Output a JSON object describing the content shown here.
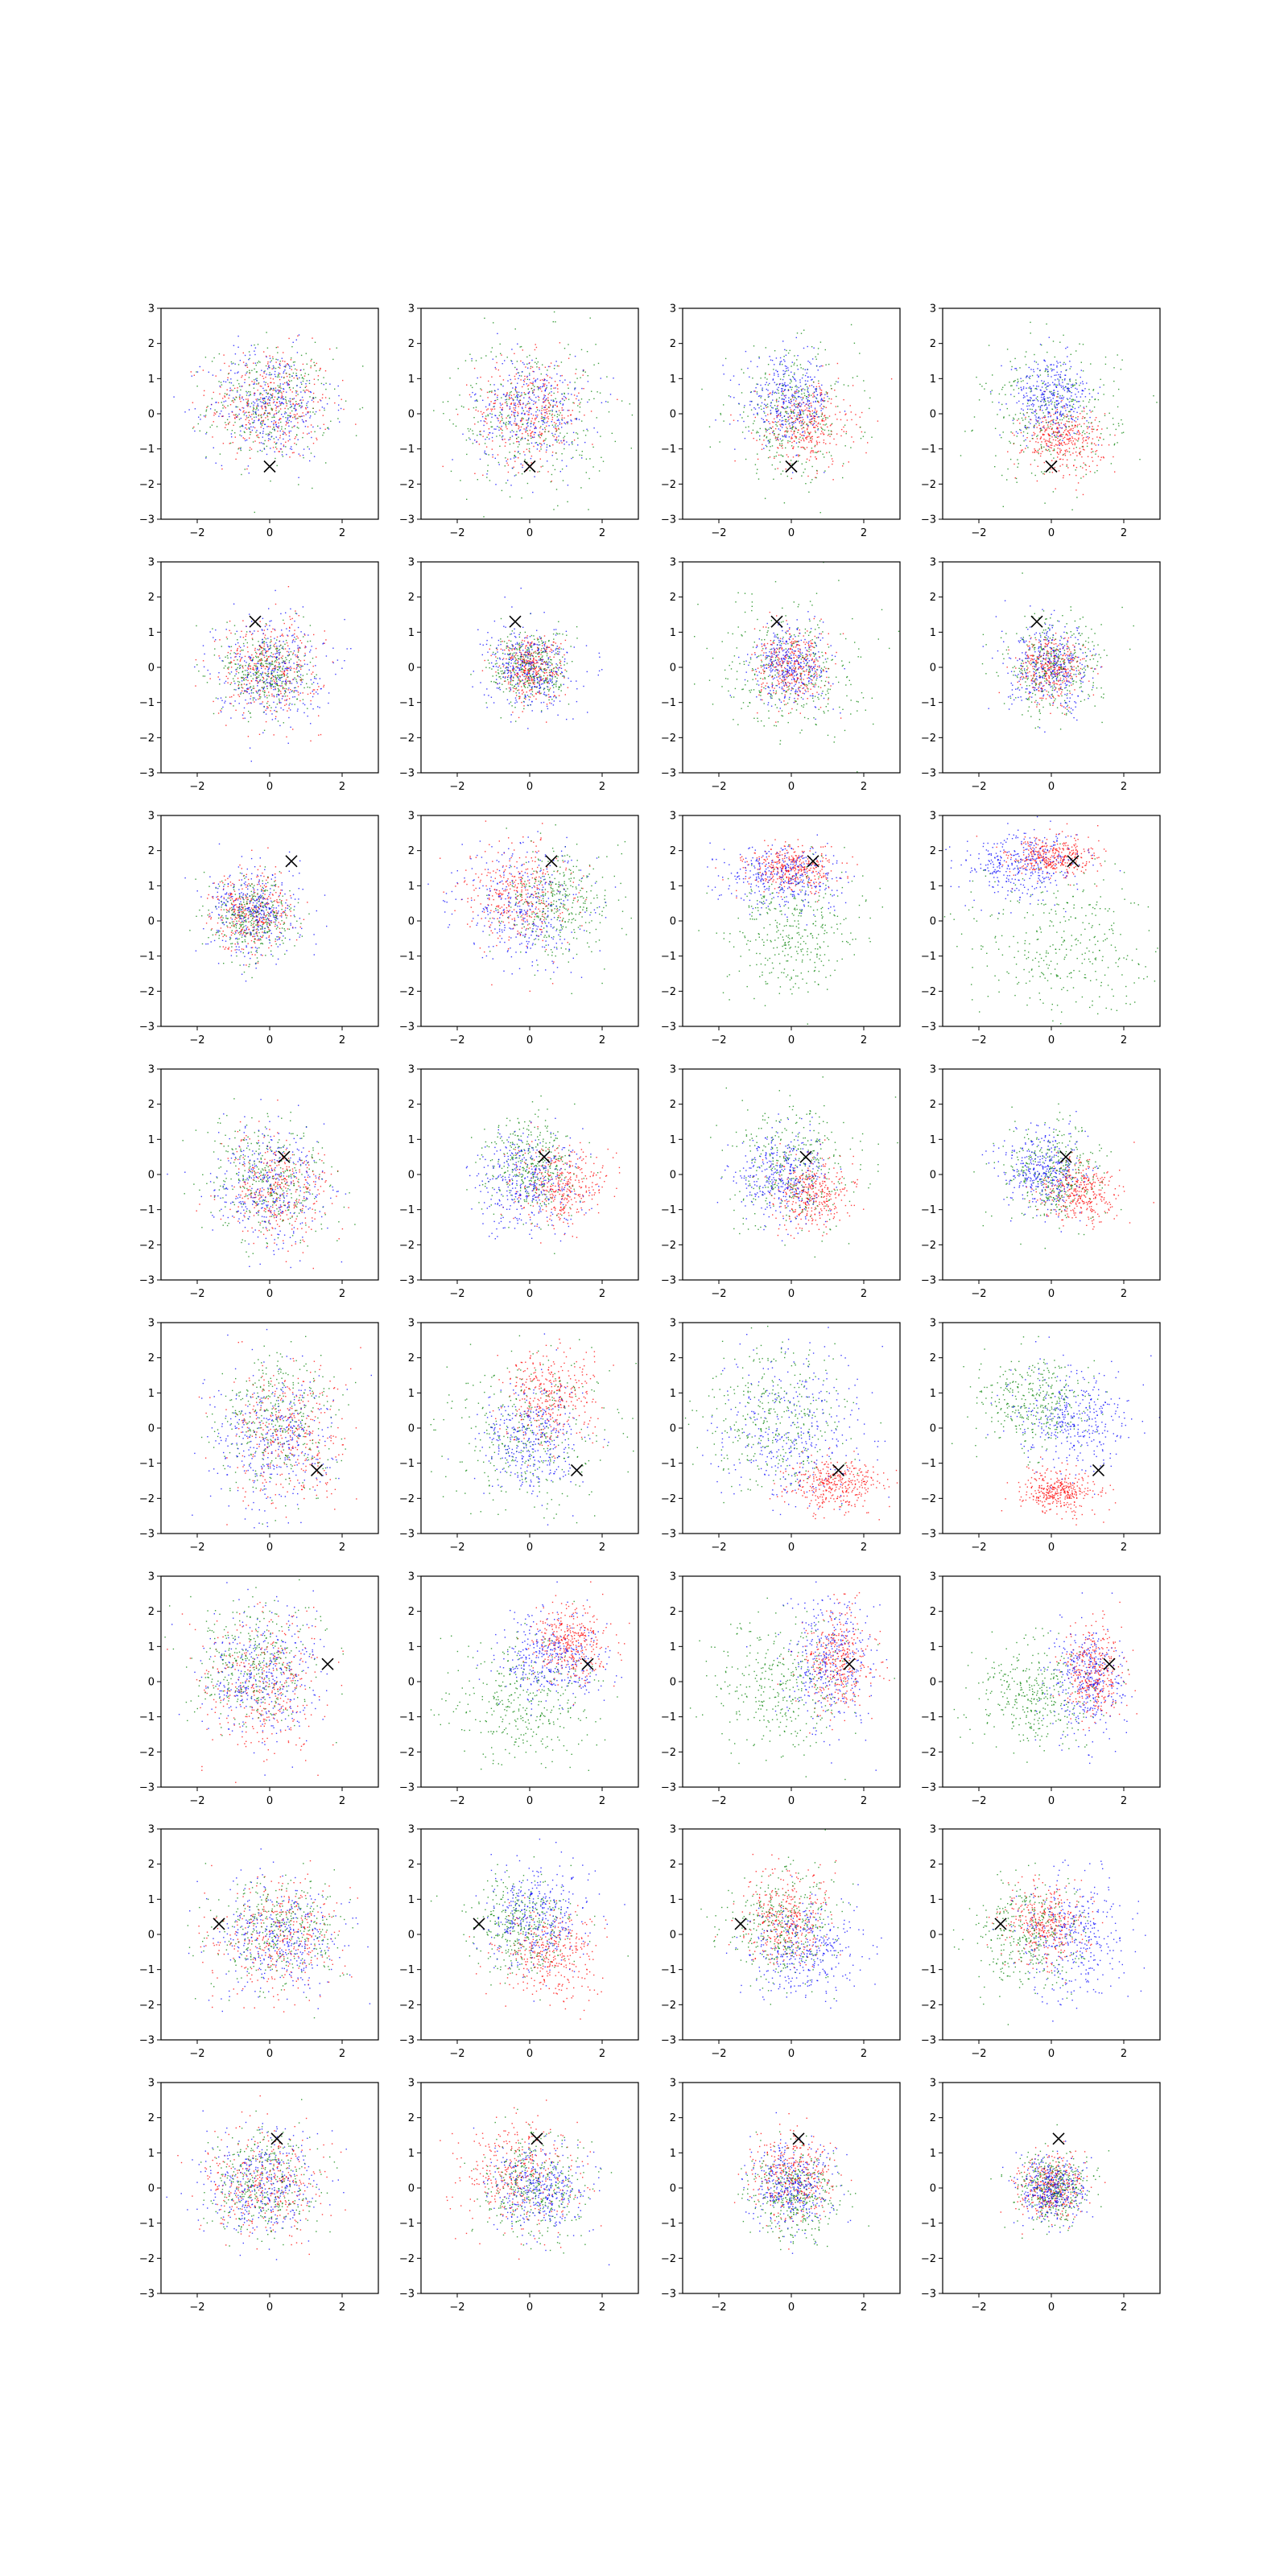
{
  "figure": {
    "rows": 8,
    "cols": 4,
    "background": "#ffffff"
  },
  "colors": {
    "red": "#ff0000",
    "green": "#008000",
    "blue": "#0000ff",
    "marker": "#000000",
    "axes": "#000000"
  },
  "chart_data": {
    "type": "scatter",
    "title": "",
    "xlabel": "",
    "ylabel": "",
    "xlim": [
      -3,
      3
    ],
    "ylim": [
      -3,
      3
    ],
    "xticks": [
      -2,
      0,
      2
    ],
    "yticks": [
      -3,
      -2,
      -1,
      0,
      1,
      2,
      3
    ],
    "tick_labels_x": [
      "−2",
      "0",
      "2"
    ],
    "tick_labels_y": [
      "−3",
      "−2",
      "−1",
      "0",
      "1",
      "2",
      "3"
    ],
    "grid": false,
    "marker_symbol": "x",
    "series_colors": [
      "#ff0000",
      "#008000",
      "#0000ff"
    ],
    "panels": [
      {
        "marker": [
          0.0,
          -1.5
        ],
        "series": [
          {
            "color": "#ff0000",
            "cx": 0.0,
            "cy": 0.3,
            "sx": 0.85,
            "sy": 0.8
          },
          {
            "color": "#008000",
            "cx": 0.0,
            "cy": 0.3,
            "sx": 0.85,
            "sy": 0.8
          },
          {
            "color": "#0000ff",
            "cx": 0.0,
            "cy": 0.3,
            "sx": 0.85,
            "sy": 0.8
          }
        ]
      },
      {
        "marker": [
          0.0,
          -1.5
        ],
        "series": [
          {
            "color": "#ff0000",
            "cx": 0.0,
            "cy": 0.1,
            "sx": 0.75,
            "sy": 0.75
          },
          {
            "color": "#008000",
            "cx": 0.0,
            "cy": 0.0,
            "sx": 1.1,
            "sy": 1.1
          },
          {
            "color": "#0000ff",
            "cx": 0.0,
            "cy": 0.1,
            "sx": 0.8,
            "sy": 0.8
          }
        ]
      },
      {
        "marker": [
          0.0,
          -1.5
        ],
        "series": [
          {
            "color": "#ff0000",
            "cx": 0.4,
            "cy": -0.3,
            "sx": 0.65,
            "sy": 0.6
          },
          {
            "color": "#008000",
            "cx": 0.0,
            "cy": 0.0,
            "sx": 0.9,
            "sy": 0.9
          },
          {
            "color": "#0000ff",
            "cx": -0.1,
            "cy": 0.4,
            "sx": 0.6,
            "sy": 0.6
          }
        ]
      },
      {
        "marker": [
          0.0,
          -1.5
        ],
        "series": [
          {
            "color": "#ff0000",
            "cx": 0.3,
            "cy": -0.7,
            "sx": 0.55,
            "sy": 0.45
          },
          {
            "color": "#008000",
            "cx": 0.0,
            "cy": 0.0,
            "sx": 0.95,
            "sy": 0.95
          },
          {
            "color": "#0000ff",
            "cx": 0.0,
            "cy": 0.5,
            "sx": 0.55,
            "sy": 0.55
          }
        ]
      },
      {
        "marker": [
          -0.4,
          1.3
        ],
        "series": [
          {
            "color": "#ff0000",
            "cx": 0.0,
            "cy": 0.0,
            "sx": 0.7,
            "sy": 0.7
          },
          {
            "color": "#008000",
            "cx": -0.1,
            "cy": -0.1,
            "sx": 0.6,
            "sy": 0.6
          },
          {
            "color": "#0000ff",
            "cx": 0.0,
            "cy": 0.0,
            "sx": 0.75,
            "sy": 0.75
          }
        ]
      },
      {
        "marker": [
          -0.4,
          1.3
        ],
        "series": [
          {
            "color": "#ff0000",
            "cx": 0.0,
            "cy": 0.0,
            "sx": 0.45,
            "sy": 0.45
          },
          {
            "color": "#008000",
            "cx": 0.0,
            "cy": 0.0,
            "sx": 0.55,
            "sy": 0.55
          },
          {
            "color": "#0000ff",
            "cx": 0.0,
            "cy": 0.0,
            "sx": 0.6,
            "sy": 0.6
          }
        ]
      },
      {
        "marker": [
          -0.4,
          1.3
        ],
        "series": [
          {
            "color": "#ff0000",
            "cx": 0.0,
            "cy": 0.0,
            "sx": 0.5,
            "sy": 0.5
          },
          {
            "color": "#008000",
            "cx": 0.0,
            "cy": 0.0,
            "sx": 0.95,
            "sy": 0.95
          },
          {
            "color": "#0000ff",
            "cx": 0.0,
            "cy": 0.1,
            "sx": 0.55,
            "sy": 0.55
          }
        ]
      },
      {
        "marker": [
          -0.4,
          1.3
        ],
        "series": [
          {
            "color": "#ff0000",
            "cx": 0.0,
            "cy": 0.0,
            "sx": 0.45,
            "sy": 0.45
          },
          {
            "color": "#008000",
            "cx": 0.0,
            "cy": 0.0,
            "sx": 0.7,
            "sy": 0.7
          },
          {
            "color": "#0000ff",
            "cx": 0.0,
            "cy": 0.0,
            "sx": 0.6,
            "sy": 0.6
          }
        ]
      },
      {
        "marker": [
          0.6,
          1.7
        ],
        "series": [
          {
            "color": "#ff0000",
            "cx": -0.5,
            "cy": 0.3,
            "sx": 0.55,
            "sy": 0.55
          },
          {
            "color": "#008000",
            "cx": -0.5,
            "cy": 0.1,
            "sx": 0.55,
            "sy": 0.55
          },
          {
            "color": "#0000ff",
            "cx": -0.4,
            "cy": 0.3,
            "sx": 0.65,
            "sy": 0.65
          }
        ]
      },
      {
        "marker": [
          0.6,
          1.7
        ],
        "series": [
          {
            "color": "#ff0000",
            "cx": -0.3,
            "cy": 0.8,
            "sx": 0.7,
            "sy": 0.7
          },
          {
            "color": "#008000",
            "cx": 0.8,
            "cy": 0.5,
            "sx": 0.75,
            "sy": 0.75
          },
          {
            "color": "#0000ff",
            "cx": -0.2,
            "cy": 0.4,
            "sx": 0.9,
            "sy": 0.9
          }
        ]
      },
      {
        "marker": [
          0.6,
          1.7
        ],
        "series": [
          {
            "color": "#ff0000",
            "cx": 0.0,
            "cy": 1.5,
            "sx": 0.6,
            "sy": 0.3
          },
          {
            "color": "#008000",
            "cx": 0.0,
            "cy": -0.3,
            "sx": 0.9,
            "sy": 0.9
          },
          {
            "color": "#0000ff",
            "cx": -0.2,
            "cy": 1.3,
            "sx": 0.8,
            "sy": 0.45
          }
        ]
      },
      {
        "marker": [
          0.6,
          1.7
        ],
        "series": [
          {
            "color": "#ff0000",
            "cx": 0.0,
            "cy": 1.8,
            "sx": 0.6,
            "sy": 0.3
          },
          {
            "color": "#008000",
            "cx": 0.3,
            "cy": -0.8,
            "sx": 1.4,
            "sy": 1.2
          },
          {
            "color": "#0000ff",
            "cx": -0.8,
            "cy": 1.6,
            "sx": 0.8,
            "sy": 0.5
          }
        ]
      },
      {
        "marker": [
          0.4,
          0.5
        ],
        "series": [
          {
            "color": "#ff0000",
            "cx": 0.2,
            "cy": -0.4,
            "sx": 0.75,
            "sy": 0.75
          },
          {
            "color": "#008000",
            "cx": 0.0,
            "cy": -0.2,
            "sx": 0.85,
            "sy": 0.85
          },
          {
            "color": "#0000ff",
            "cx": 0.0,
            "cy": -0.3,
            "sx": 0.8,
            "sy": 0.8
          }
        ]
      },
      {
        "marker": [
          0.4,
          0.5
        ],
        "series": [
          {
            "color": "#ff0000",
            "cx": 0.8,
            "cy": -0.3,
            "sx": 0.6,
            "sy": 0.55
          },
          {
            "color": "#008000",
            "cx": 0.0,
            "cy": 0.3,
            "sx": 0.65,
            "sy": 0.7
          },
          {
            "color": "#0000ff",
            "cx": -0.1,
            "cy": -0.2,
            "sx": 0.75,
            "sy": 0.75
          }
        ]
      },
      {
        "marker": [
          0.4,
          0.5
        ],
        "series": [
          {
            "color": "#ff0000",
            "cx": 0.6,
            "cy": -0.5,
            "sx": 0.55,
            "sy": 0.5
          },
          {
            "color": "#008000",
            "cx": 0.0,
            "cy": 0.2,
            "sx": 0.85,
            "sy": 0.85
          },
          {
            "color": "#0000ff",
            "cx": -0.3,
            "cy": 0.0,
            "sx": 0.65,
            "sy": 0.65
          }
        ]
      },
      {
        "marker": [
          0.4,
          0.5
        ],
        "series": [
          {
            "color": "#ff0000",
            "cx": 0.7,
            "cy": -0.5,
            "sx": 0.5,
            "sy": 0.45
          },
          {
            "color": "#008000",
            "cx": 0.0,
            "cy": 0.1,
            "sx": 0.7,
            "sy": 0.7
          },
          {
            "color": "#0000ff",
            "cx": -0.3,
            "cy": 0.1,
            "sx": 0.55,
            "sy": 0.6
          }
        ]
      },
      {
        "marker": [
          1.3,
          -1.2
        ],
        "series": [
          {
            "color": "#ff0000",
            "cx": 0.5,
            "cy": -0.2,
            "sx": 0.8,
            "sy": 1.0
          },
          {
            "color": "#008000",
            "cx": 0.2,
            "cy": 0.1,
            "sx": 0.8,
            "sy": 1.0
          },
          {
            "color": "#0000ff",
            "cx": 0.0,
            "cy": -0.3,
            "sx": 0.85,
            "sy": 1.0
          }
        ]
      },
      {
        "marker": [
          1.3,
          -1.2
        ],
        "series": [
          {
            "color": "#ff0000",
            "cx": 0.5,
            "cy": 0.8,
            "sx": 0.6,
            "sy": 0.7
          },
          {
            "color": "#008000",
            "cx": 0.0,
            "cy": -0.2,
            "sx": 1.1,
            "sy": 1.1
          },
          {
            "color": "#0000ff",
            "cx": 0.0,
            "cy": -0.3,
            "sx": 0.7,
            "sy": 0.8
          }
        ]
      },
      {
        "marker": [
          1.3,
          -1.2
        ],
        "series": [
          {
            "color": "#ff0000",
            "cx": 1.2,
            "cy": -1.6,
            "sx": 0.6,
            "sy": 0.35
          },
          {
            "color": "#008000",
            "cx": -0.5,
            "cy": 0.3,
            "sx": 1.0,
            "sy": 1.0
          },
          {
            "color": "#0000ff",
            "cx": 0.0,
            "cy": 0.0,
            "sx": 1.1,
            "sy": 1.1
          }
        ]
      },
      {
        "marker": [
          1.3,
          -1.2
        ],
        "series": [
          {
            "color": "#ff0000",
            "cx": 0.2,
            "cy": -1.8,
            "sx": 0.55,
            "sy": 0.3
          },
          {
            "color": "#008000",
            "cx": -0.5,
            "cy": 0.8,
            "sx": 0.75,
            "sy": 0.6
          },
          {
            "color": "#0000ff",
            "cx": 0.6,
            "cy": 0.2,
            "sx": 0.75,
            "sy": 0.75
          }
        ]
      },
      {
        "marker": [
          1.6,
          0.5
        ],
        "series": [
          {
            "color": "#ff0000",
            "cx": -0.2,
            "cy": 0.0,
            "sx": 0.85,
            "sy": 0.95
          },
          {
            "color": "#008000",
            "cx": -0.5,
            "cy": 0.5,
            "sx": 0.85,
            "sy": 0.9
          },
          {
            "color": "#0000ff",
            "cx": -0.2,
            "cy": 0.2,
            "sx": 0.85,
            "sy": 0.95
          }
        ]
      },
      {
        "marker": [
          1.6,
          0.5
        ],
        "series": [
          {
            "color": "#ff0000",
            "cx": 1.1,
            "cy": 1.1,
            "sx": 0.5,
            "sy": 0.5
          },
          {
            "color": "#008000",
            "cx": -0.2,
            "cy": -0.6,
            "sx": 1.0,
            "sy": 0.9
          },
          {
            "color": "#0000ff",
            "cx": 0.6,
            "cy": 0.7,
            "sx": 0.7,
            "sy": 0.7
          }
        ]
      },
      {
        "marker": [
          1.6,
          0.5
        ],
        "series": [
          {
            "color": "#ff0000",
            "cx": 1.3,
            "cy": 0.6,
            "sx": 0.45,
            "sy": 0.7
          },
          {
            "color": "#008000",
            "cx": -0.4,
            "cy": -0.2,
            "sx": 0.95,
            "sy": 0.95
          },
          {
            "color": "#0000ff",
            "cx": 1.1,
            "cy": 0.4,
            "sx": 0.6,
            "sy": 0.9
          }
        ]
      },
      {
        "marker": [
          1.6,
          0.5
        ],
        "series": [
          {
            "color": "#ff0000",
            "cx": 1.2,
            "cy": 0.3,
            "sx": 0.4,
            "sy": 0.65
          },
          {
            "color": "#008000",
            "cx": -0.5,
            "cy": -0.4,
            "sx": 0.8,
            "sy": 0.75
          },
          {
            "color": "#0000ff",
            "cx": 1.0,
            "cy": 0.0,
            "sx": 0.55,
            "sy": 0.8
          }
        ]
      },
      {
        "marker": [
          -1.4,
          0.3
        ],
        "series": [
          {
            "color": "#ff0000",
            "cx": 0.2,
            "cy": 0.0,
            "sx": 0.9,
            "sy": 0.8
          },
          {
            "color": "#008000",
            "cx": 0.2,
            "cy": 0.1,
            "sx": 0.9,
            "sy": 0.8
          },
          {
            "color": "#0000ff",
            "cx": 0.2,
            "cy": -0.1,
            "sx": 0.9,
            "sy": 0.8
          }
        ]
      },
      {
        "marker": [
          -1.4,
          0.3
        ],
        "series": [
          {
            "color": "#ff0000",
            "cx": 0.6,
            "cy": -0.5,
            "sx": 0.65,
            "sy": 0.65
          },
          {
            "color": "#008000",
            "cx": -0.2,
            "cy": 0.3,
            "sx": 0.7,
            "sy": 0.7
          },
          {
            "color": "#0000ff",
            "cx": 0.2,
            "cy": 0.6,
            "sx": 0.75,
            "sy": 0.75
          }
        ]
      },
      {
        "marker": [
          -1.4,
          0.3
        ],
        "series": [
          {
            "color": "#ff0000",
            "cx": -0.2,
            "cy": 0.4,
            "sx": 0.6,
            "sy": 0.65
          },
          {
            "color": "#008000",
            "cx": -0.3,
            "cy": 0.2,
            "sx": 0.8,
            "sy": 0.8
          },
          {
            "color": "#0000ff",
            "cx": 0.4,
            "cy": -0.4,
            "sx": 0.75,
            "sy": 0.7
          }
        ]
      },
      {
        "marker": [
          -1.4,
          0.3
        ],
        "series": [
          {
            "color": "#ff0000",
            "cx": -0.2,
            "cy": 0.3,
            "sx": 0.55,
            "sy": 0.55
          },
          {
            "color": "#008000",
            "cx": -0.6,
            "cy": 0.0,
            "sx": 0.75,
            "sy": 0.75
          },
          {
            "color": "#0000ff",
            "cx": 0.6,
            "cy": 0.0,
            "sx": 0.7,
            "sy": 0.85
          }
        ]
      },
      {
        "marker": [
          0.2,
          1.4
        ],
        "series": [
          {
            "color": "#ff0000",
            "cx": -0.2,
            "cy": 0.2,
            "sx": 0.8,
            "sy": 0.75
          },
          {
            "color": "#008000",
            "cx": -0.2,
            "cy": 0.2,
            "sx": 0.75,
            "sy": 0.75
          },
          {
            "color": "#0000ff",
            "cx": -0.2,
            "cy": 0.2,
            "sx": 0.8,
            "sy": 0.75
          }
        ]
      },
      {
        "marker": [
          0.2,
          1.4
        ],
        "series": [
          {
            "color": "#ff0000",
            "cx": -0.3,
            "cy": 0.4,
            "sx": 0.8,
            "sy": 0.75
          },
          {
            "color": "#008000",
            "cx": 0.1,
            "cy": 0.0,
            "sx": 0.75,
            "sy": 0.75
          },
          {
            "color": "#0000ff",
            "cx": 0.2,
            "cy": 0.0,
            "sx": 0.65,
            "sy": 0.6
          }
        ]
      },
      {
        "marker": [
          0.2,
          1.4
        ],
        "series": [
          {
            "color": "#ff0000",
            "cx": 0.0,
            "cy": 0.3,
            "sx": 0.6,
            "sy": 0.6
          },
          {
            "color": "#008000",
            "cx": 0.1,
            "cy": -0.2,
            "sx": 0.65,
            "sy": 0.6
          },
          {
            "color": "#0000ff",
            "cx": 0.0,
            "cy": 0.0,
            "sx": 0.55,
            "sy": 0.55
          }
        ]
      },
      {
        "marker": [
          0.2,
          1.4
        ],
        "series": [
          {
            "color": "#ff0000",
            "cx": 0.0,
            "cy": 0.0,
            "sx": 0.45,
            "sy": 0.45
          },
          {
            "color": "#008000",
            "cx": 0.0,
            "cy": 0.0,
            "sx": 0.5,
            "sy": 0.5
          },
          {
            "color": "#0000ff",
            "cx": 0.0,
            "cy": 0.0,
            "sx": 0.45,
            "sy": 0.45
          }
        ]
      }
    ]
  }
}
